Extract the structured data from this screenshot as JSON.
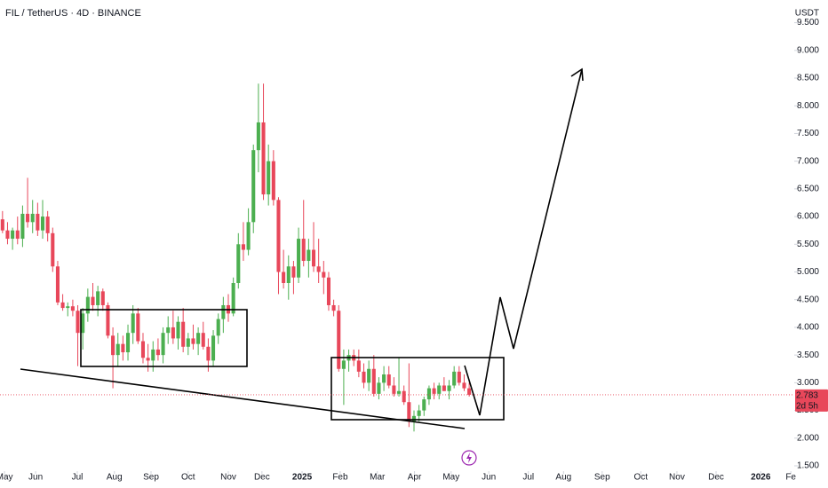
{
  "chart_data": {
    "type": "candlestick",
    "title": "FIL / TetherUS · 4D · BINANCE",
    "currency": "USDT",
    "countdown": "2d 5h",
    "up_color": "#4caf50",
    "down_color": "#e8475a",
    "open": [
      5.95,
      5.75,
      5.6,
      5.75,
      5.6,
      6.05,
      5.9,
      6.05,
      5.75,
      6.0,
      5.7,
      5.1,
      4.45,
      4.35,
      4.38,
      4.3,
      3.9,
      4.25,
      4.55,
      4.4,
      4.65,
      4.4,
      3.85,
      3.5,
      3.7,
      3.55,
      3.9,
      4.25,
      3.75,
      3.45,
      3.4,
      3.6,
      3.5,
      3.9,
      4.0,
      3.8,
      4.1,
      3.65,
      3.8,
      3.7,
      3.9,
      3.65,
      3.4,
      3.85,
      4.15,
      4.4,
      4.25,
      4.8,
      5.5,
      5.4,
      5.9,
      7.2,
      7.7,
      6.4,
      7.0,
      6.3,
      5.0,
      4.8,
      5.1,
      4.9,
      5.6,
      5.2,
      5.4,
      5.1,
      5.0,
      4.9,
      4.4,
      4.3,
      3.25,
      3.4,
      3.5,
      3.4,
      3.2,
      3.0,
      3.25,
      2.8,
      3.0,
      3.15,
      2.95,
      2.8,
      2.85,
      2.65,
      2.3,
      2.4,
      2.5,
      2.7,
      2.9,
      2.8,
      2.95,
      2.85,
      2.95,
      3.2,
      3.0,
      2.9
    ],
    "high": [
      6.1,
      5.9,
      5.8,
      6.0,
      6.2,
      6.7,
      6.3,
      6.25,
      6.3,
      6.1,
      5.8,
      5.2,
      4.6,
      4.45,
      4.5,
      4.4,
      4.35,
      4.7,
      4.8,
      4.75,
      4.7,
      4.45,
      4.0,
      3.9,
      3.85,
      4.05,
      4.4,
      4.35,
      3.9,
      3.7,
      3.75,
      3.8,
      4.0,
      4.2,
      4.3,
      4.2,
      4.35,
      3.9,
      4.05,
      4.0,
      4.1,
      3.8,
      3.95,
      4.25,
      4.55,
      4.6,
      4.9,
      5.7,
      5.9,
      6.15,
      7.3,
      8.4,
      8.4,
      7.3,
      7.2,
      6.35,
      5.4,
      5.3,
      5.2,
      5.8,
      6.3,
      5.6,
      5.9,
      5.6,
      5.2,
      5.0,
      4.5,
      4.4,
      3.6,
      3.6,
      3.6,
      3.6,
      3.35,
      3.4,
      3.5,
      3.1,
      3.3,
      3.3,
      3.1,
      3.45,
      2.95,
      3.35,
      2.5,
      2.6,
      2.75,
      2.95,
      3.0,
      3.0,
      3.1,
      3.05,
      3.3,
      3.3,
      3.15,
      3.0
    ],
    "low": [
      5.7,
      5.5,
      5.4,
      5.5,
      5.45,
      5.8,
      5.7,
      5.65,
      5.6,
      5.55,
      5.0,
      4.4,
      4.3,
      4.2,
      4.2,
      3.3,
      3.6,
      4.1,
      4.3,
      4.2,
      4.3,
      3.8,
      2.9,
      3.3,
      3.4,
      3.4,
      3.7,
      3.7,
      3.35,
      3.2,
      3.2,
      3.4,
      3.35,
      3.7,
      3.7,
      3.6,
      3.55,
      3.5,
      3.6,
      3.5,
      3.6,
      3.2,
      3.3,
      3.7,
      3.9,
      4.1,
      4.2,
      4.7,
      5.2,
      5.3,
      5.7,
      6.8,
      6.3,
      6.2,
      6.2,
      4.6,
      4.7,
      4.5,
      4.6,
      4.8,
      5.1,
      4.9,
      5.0,
      4.8,
      4.6,
      4.3,
      4.2,
      3.2,
      2.6,
      3.2,
      3.3,
      3.1,
      2.9,
      2.85,
      2.75,
      2.7,
      2.85,
      2.9,
      2.75,
      2.75,
      2.6,
      2.2,
      2.12,
      2.3,
      2.4,
      2.6,
      2.7,
      2.7,
      2.85,
      2.7,
      2.9,
      2.95,
      2.85,
      2.75
    ],
    "close": [
      5.75,
      5.6,
      5.75,
      5.6,
      6.05,
      5.9,
      6.05,
      5.75,
      6.0,
      5.7,
      5.1,
      4.45,
      4.35,
      4.38,
      4.3,
      3.9,
      4.25,
      4.55,
      4.4,
      4.65,
      4.4,
      3.85,
      3.5,
      3.7,
      3.55,
      3.9,
      4.25,
      3.75,
      3.45,
      3.4,
      3.6,
      3.5,
      3.9,
      4.0,
      3.8,
      4.1,
      3.65,
      3.8,
      3.7,
      3.9,
      3.65,
      3.4,
      3.85,
      4.15,
      4.4,
      4.25,
      4.8,
      5.5,
      5.4,
      5.9,
      7.2,
      7.7,
      6.4,
      7.0,
      6.3,
      5.0,
      4.8,
      5.1,
      4.9,
      5.6,
      5.2,
      5.4,
      5.1,
      5.0,
      4.9,
      4.4,
      4.3,
      3.25,
      3.4,
      3.5,
      3.4,
      3.2,
      3.0,
      3.25,
      2.8,
      3.0,
      3.15,
      2.95,
      2.8,
      2.85,
      2.65,
      2.3,
      2.4,
      2.5,
      2.7,
      2.9,
      2.8,
      2.95,
      2.85,
      2.95,
      3.2,
      3.0,
      2.9,
      2.783
    ],
    "xlim": [
      -0.5,
      157.6
    ],
    "xticks": [
      {
        "value": 0.4,
        "label": "May"
      },
      {
        "value": 6.6,
        "label": "Jun"
      },
      {
        "value": 14.9,
        "label": "Jul"
      },
      {
        "value": 22.3,
        "label": "Aug"
      },
      {
        "value": 29.6,
        "label": "Sep"
      },
      {
        "value": 37.0,
        "label": "Oct"
      },
      {
        "value": 45.0,
        "label": "Nov"
      },
      {
        "value": 51.7,
        "label": "Dec"
      },
      {
        "value": 59.7,
        "label": "2025"
      },
      {
        "value": 67.3,
        "label": "Feb"
      },
      {
        "value": 74.7,
        "label": "Mar"
      },
      {
        "value": 82.1,
        "label": "Apr"
      },
      {
        "value": 89.4,
        "label": "May"
      },
      {
        "value": 96.9,
        "label": "Jun"
      },
      {
        "value": 104.8,
        "label": "Jul"
      },
      {
        "value": 111.8,
        "label": "Aug"
      },
      {
        "value": 119.5,
        "label": "Sep"
      },
      {
        "value": 127.2,
        "label": "Oct"
      },
      {
        "value": 134.4,
        "label": "Nov"
      },
      {
        "value": 142.2,
        "label": "Dec"
      },
      {
        "value": 151.1,
        "label": "2026"
      },
      {
        "value": 157.1,
        "label": "Fe"
      }
    ],
    "ylim": [
      1.42,
      9.91
    ],
    "yticks": [
      {
        "value": 1.5,
        "label": "1.500"
      },
      {
        "value": 2.0,
        "label": "2.000"
      },
      {
        "value": 2.5,
        "label": "2.500"
      },
      {
        "value": 3.0,
        "label": "3.000"
      },
      {
        "value": 3.5,
        "label": "3.500"
      },
      {
        "value": 4.0,
        "label": "4.000"
      },
      {
        "value": 4.5,
        "label": "4.500"
      },
      {
        "value": 5.0,
        "label": "5.000"
      },
      {
        "value": 5.5,
        "label": "5.500"
      },
      {
        "value": 6.0,
        "label": "6.000"
      },
      {
        "value": 6.5,
        "label": "6.500"
      },
      {
        "value": 7.0,
        "label": "7.000"
      },
      {
        "value": 7.5,
        "label": "7.500"
      },
      {
        "value": 8.0,
        "label": "8.000"
      },
      {
        "value": 8.5,
        "label": "8.500"
      },
      {
        "value": 9.0,
        "label": "9.000"
      },
      {
        "value": 9.5,
        "label": "9.500"
      }
    ]
  }
}
